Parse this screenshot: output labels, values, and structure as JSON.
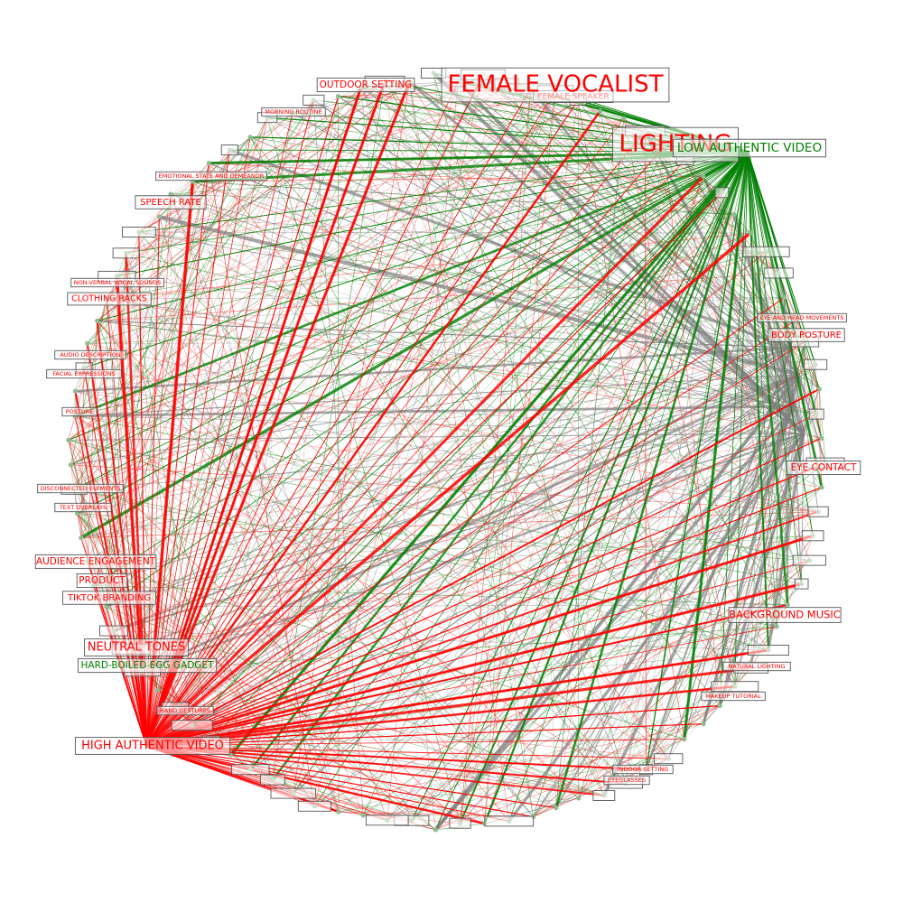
{
  "colors": {
    "high": "#ff0000",
    "low": "#008000",
    "neutral": "#808080",
    "node": "#8fbc8f",
    "label_bg": "#ffffff"
  },
  "hubs": {
    "high": "HIGH AUTHENTIC VIDEO",
    "low": "LOW AUTHENTIC VIDEO"
  },
  "labels": {
    "big": [
      {
        "text": "FEMALE VOCALIST",
        "color": "high"
      },
      {
        "text": "LIGHTING",
        "color": "high"
      },
      {
        "text": "LOW AUTHENTIC VIDEO",
        "color": "low"
      },
      {
        "text": "HIGH AUTHENTIC VIDEO",
        "color": "high"
      }
    ],
    "medium": [
      {
        "text": "OUTDOOR SETTING",
        "color": "high"
      },
      {
        "text": "SPEECH RATE",
        "color": "high"
      },
      {
        "text": "CLOTHING RACKS",
        "color": "high"
      },
      {
        "text": "AUDIENCE ENGAGEMENT",
        "color": "high"
      },
      {
        "text": "PRODUCT",
        "color": "high"
      },
      {
        "text": "TIKTOK BRANDING",
        "color": "high"
      },
      {
        "text": "NEUTRAL TONES",
        "color": "high"
      },
      {
        "text": "HARD-BOILED EGG GADGET",
        "color": "low"
      },
      {
        "text": "BODY POSTURE",
        "color": "high"
      },
      {
        "text": "EYE CONTACT",
        "color": "high"
      },
      {
        "text": "BACKGROUND MUSIC",
        "color": "high"
      }
    ],
    "small": [
      {
        "text": "FEMALE SPEAKER",
        "color": "high"
      },
      {
        "text": "MORNING ROUTINE",
        "color": "high"
      },
      {
        "text": "NON-VERBAL VOCAL SOUNDS",
        "color": "high"
      },
      {
        "text": "AUDIO DESCRIPTION",
        "color": "high"
      },
      {
        "text": "POSTURE",
        "color": "high"
      },
      {
        "text": "TEXT OVERLAYS",
        "color": "high"
      },
      {
        "text": "EYE AND HEAD MOVEMENTS",
        "color": "high"
      },
      {
        "text": "NATURAL LIGHTING",
        "color": "high"
      },
      {
        "text": "HAND GESTURES",
        "color": "high"
      },
      {
        "text": "INDOOR SETTING",
        "color": "high"
      },
      {
        "text": "EYEGLASSES",
        "color": "high"
      },
      {
        "text": "FACIAL EXPRESSIONS",
        "color": "high"
      },
      {
        "text": "MAKEUP TUTORIAL",
        "color": "high"
      },
      {
        "text": "EMOTIONAL STATE AND DEMEANOR",
        "color": "high"
      },
      {
        "text": "DISCONNECTED ELEMENTS",
        "color": "high"
      }
    ]
  }
}
